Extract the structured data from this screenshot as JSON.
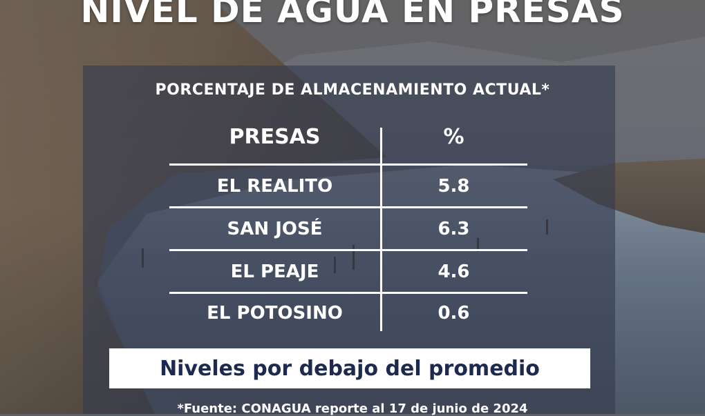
{
  "title": "NIVEL DE AGUA EN PRESAS",
  "subtitle": "PORCENTAJE DE ALMACENAMIENTO ACTUAL*",
  "table": {
    "headers": [
      "PRESAS",
      "%"
    ],
    "rows": [
      {
        "name": "EL REALITO",
        "value": "5.8"
      },
      {
        "name": "SAN JOSÉ",
        "value": "6.3"
      },
      {
        "name": "EL PEAJE",
        "value": "4.6"
      },
      {
        "name": "EL POTOSINO",
        "value": "0.6"
      }
    ]
  },
  "banner": "Niveles por debajo del promedio",
  "footnote": "*Fuente: CONAGUA reporte al 17 de junio de 2024",
  "colors": {
    "panel": "#343a4e",
    "banner_text": "#1d2a4d",
    "text": "#ffffff"
  }
}
